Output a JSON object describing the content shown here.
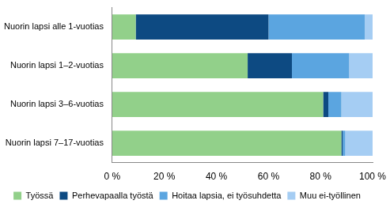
{
  "chart_data": {
    "type": "bar",
    "orientation": "horizontal",
    "stacked": true,
    "categories": [
      "Nuorin lapsi alle 1-vuotias",
      "Nuorin lapsi 1–2-vuotias",
      "Nuorin lapsi 3–6-vuotias",
      "Nuorin lapsi 7–17-vuotias"
    ],
    "series": [
      {
        "name": "Työssä",
        "color": "#92d08a",
        "values": [
          9,
          52,
          81,
          88
        ]
      },
      {
        "name": "Perhevapaalla työstä",
        "color": "#0d4a82",
        "values": [
          51,
          17,
          2,
          0.5
        ]
      },
      {
        "name": "Hoitaa lapsia, ei työsuhdetta",
        "color": "#5ba5e0",
        "values": [
          37,
          22,
          5,
          1
        ]
      },
      {
        "name": "Muu ei-työllinen",
        "color": "#a5cdf3",
        "values": [
          3,
          9,
          12,
          10.5
        ]
      }
    ],
    "xlim": [
      0,
      100
    ],
    "xticks": [
      {
        "value": 0,
        "label": "0 %"
      },
      {
        "value": 20,
        "label": "20 %"
      },
      {
        "value": 40,
        "label": "40 %"
      },
      {
        "value": 60,
        "label": "60 %"
      },
      {
        "value": 80,
        "label": "80 %"
      },
      {
        "value": 100,
        "label": "100 %"
      }
    ],
    "grid": false,
    "legend": "bottom"
  }
}
